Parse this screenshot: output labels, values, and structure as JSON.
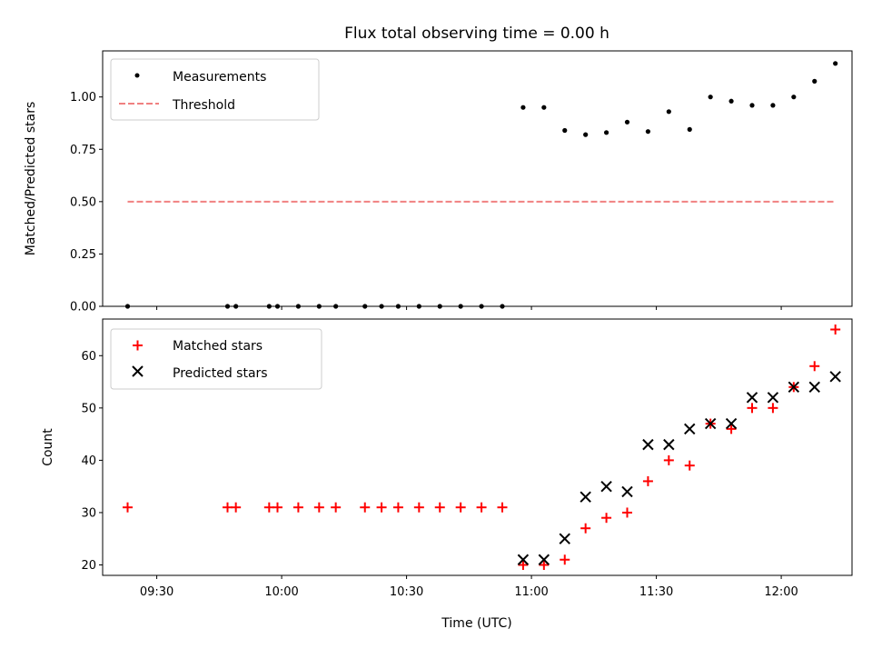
{
  "chart_data": [
    {
      "type": "scatter",
      "title": "Flux total observing time = 0.00 h",
      "xlabel": "",
      "ylabel": "Matched/Predicted stars",
      "xlim": [
        "09:17",
        "12:17"
      ],
      "ylim": [
        0,
        1.22
      ],
      "yticks": [
        "0.00",
        "0.25",
        "0.50",
        "0.75",
        "1.00"
      ],
      "legend_position": "top-left",
      "grid": false,
      "series": [
        {
          "name": "Measurements",
          "marker": "dot",
          "color": "#000000",
          "x": [
            "09:23",
            "09:47",
            "09:49",
            "09:57",
            "09:59",
            "10:04",
            "10:09",
            "10:13",
            "10:20",
            "10:24",
            "10:28",
            "10:33",
            "10:38",
            "10:43",
            "10:48",
            "10:53",
            "10:58",
            "11:03",
            "11:08",
            "11:13",
            "11:18",
            "11:23",
            "11:28",
            "11:33",
            "11:38",
            "11:43",
            "11:48",
            "11:53",
            "11:58",
            "12:03",
            "12:08",
            "12:13"
          ],
          "y": [
            0,
            0,
            0,
            0,
            0,
            0,
            0,
            0,
            0,
            0,
            0,
            0,
            0,
            0,
            0,
            0,
            0.95,
            0.95,
            0.84,
            0.82,
            0.83,
            0.88,
            0.835,
            0.93,
            0.845,
            1.0,
            0.98,
            0.96,
            0.96,
            1.0,
            1.075,
            1.16
          ]
        },
        {
          "name": "Threshold",
          "style": "dashed",
          "color": "#f08080",
          "x": [
            "09:23",
            "12:13"
          ],
          "y": [
            0.5,
            0.5
          ]
        }
      ]
    },
    {
      "type": "scatter",
      "title": "",
      "xlabel": "Time (UTC)",
      "ylabel": "Count",
      "xlim": [
        "09:17",
        "12:17"
      ],
      "ylim": [
        18,
        67
      ],
      "yticks": [
        "20",
        "30",
        "40",
        "50",
        "60"
      ],
      "xticks": [
        "09:30",
        "10:00",
        "10:30",
        "11:00",
        "11:30",
        "12:00"
      ],
      "legend_position": "top-left",
      "grid": false,
      "series": [
        {
          "name": "Matched stars",
          "marker": "plus",
          "color": "#ff0000",
          "x": [
            "09:23",
            "09:47",
            "09:49",
            "09:57",
            "09:59",
            "10:04",
            "10:09",
            "10:13",
            "10:20",
            "10:24",
            "10:28",
            "10:33",
            "10:38",
            "10:43",
            "10:48",
            "10:53",
            "10:58",
            "11:03",
            "11:08",
            "11:13",
            "11:18",
            "11:23",
            "11:28",
            "11:33",
            "11:38",
            "11:43",
            "11:48",
            "11:53",
            "11:58",
            "12:03",
            "12:08",
            "12:13"
          ],
          "y": [
            31,
            31,
            31,
            31,
            31,
            31,
            31,
            31,
            31,
            31,
            31,
            31,
            31,
            31,
            31,
            31,
            20,
            20,
            21,
            27,
            29,
            30,
            36,
            40,
            39,
            47,
            46,
            50,
            50,
            54,
            58,
            65
          ]
        },
        {
          "name": "Predicted stars",
          "marker": "x",
          "color": "#000000",
          "x": [
            "10:58",
            "11:03",
            "11:08",
            "11:13",
            "11:18",
            "11:23",
            "11:28",
            "11:33",
            "11:38",
            "11:43",
            "11:48",
            "11:53",
            "11:58",
            "12:03",
            "12:08",
            "12:13"
          ],
          "y": [
            21,
            21,
            25,
            33,
            35,
            34,
            43,
            43,
            46,
            47,
            47,
            52,
            52,
            54,
            54,
            56
          ]
        }
      ]
    }
  ]
}
